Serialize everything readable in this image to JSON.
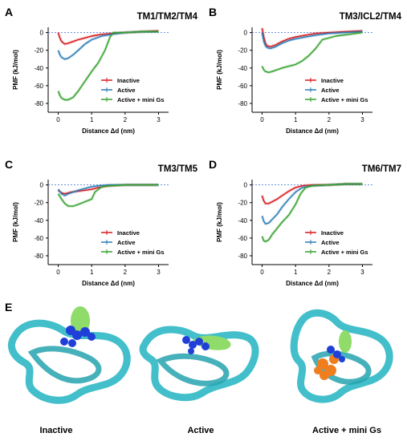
{
  "chart_data": [
    {
      "type": "line",
      "panel": "A",
      "title": "TM1/TM2/TM4",
      "xlabel": "Distance Δd (nm)",
      "ylabel": "PMF (kJ/mol)",
      "xlim": [
        -0.3,
        3.3
      ],
      "ylim": [
        -90,
        6
      ],
      "xticks": [
        0,
        1,
        2,
        3
      ],
      "yticks": [
        0,
        -20,
        -40,
        -60,
        -80
      ],
      "reference_line": 0,
      "legend": "bottom-right",
      "series": [
        {
          "name": "Inactive",
          "color": "#d7191c",
          "x": [
            0.0,
            0.05,
            0.1,
            0.2,
            0.3,
            0.45,
            0.6,
            0.8,
            1.0,
            1.3,
            1.6,
            2.0,
            2.5,
            3.0
          ],
          "y": [
            0,
            -6,
            -10,
            -13,
            -12,
            -10,
            -8,
            -6,
            -4,
            -2,
            -1,
            0,
            1,
            2
          ]
        },
        {
          "name": "Active",
          "color": "#2c7bb6",
          "x": [
            0.0,
            0.05,
            0.1,
            0.2,
            0.3,
            0.45,
            0.6,
            0.8,
            1.0,
            1.3,
            1.6,
            2.0,
            2.5,
            3.0
          ],
          "y": [
            -20,
            -25,
            -28,
            -30,
            -29,
            -25,
            -20,
            -13,
            -8,
            -4,
            -2,
            0,
            1,
            1
          ]
        },
        {
          "name": "Active + mini Gs",
          "color": "#33a02c",
          "x": [
            0.0,
            0.05,
            0.1,
            0.2,
            0.3,
            0.45,
            0.6,
            0.8,
            1.0,
            1.2,
            1.4,
            1.55,
            1.65,
            2.0,
            2.5,
            3.0
          ],
          "y": [
            -66,
            -71,
            -74,
            -76,
            -76,
            -73,
            -66,
            -55,
            -44,
            -34,
            -20,
            -5,
            0,
            0,
            1,
            1
          ]
        }
      ]
    },
    {
      "type": "line",
      "panel": "B",
      "title": "TM3/ICL2/TM4",
      "xlabel": "Distance Δd (nm)",
      "ylabel": "PMF (kJ/mol)",
      "xlim": [
        -0.3,
        3.3
      ],
      "ylim": [
        -90,
        6
      ],
      "xticks": [
        0,
        1,
        2,
        3
      ],
      "yticks": [
        0,
        -20,
        -40,
        -60,
        -80
      ],
      "reference_line": 0,
      "legend": "bottom-right",
      "series": [
        {
          "name": "Inactive",
          "color": "#d7191c",
          "x": [
            0.0,
            0.05,
            0.1,
            0.15,
            0.25,
            0.4,
            0.6,
            0.8,
            1.0,
            1.3,
            1.6,
            2.0,
            2.5,
            3.0
          ],
          "y": [
            5,
            -5,
            -12,
            -15,
            -16,
            -14,
            -10,
            -7,
            -5,
            -3,
            -1,
            0,
            1,
            2
          ]
        },
        {
          "name": "Active",
          "color": "#2c7bb6",
          "x": [
            0.0,
            0.05,
            0.1,
            0.15,
            0.25,
            0.4,
            0.6,
            0.8,
            1.0,
            1.3,
            1.6,
            2.0,
            2.5,
            3.0
          ],
          "y": [
            0,
            -10,
            -15,
            -17,
            -18,
            -16,
            -12,
            -9,
            -7,
            -5,
            -3,
            -1,
            0,
            1
          ]
        },
        {
          "name": "Active + mini Gs",
          "color": "#33a02c",
          "x": [
            0.0,
            0.05,
            0.1,
            0.2,
            0.3,
            0.45,
            0.6,
            0.8,
            1.0,
            1.2,
            1.4,
            1.6,
            1.8,
            2.2,
            2.6,
            3.0
          ],
          "y": [
            -38,
            -42,
            -44,
            -45,
            -44,
            -42,
            -40,
            -38,
            -36,
            -32,
            -26,
            -18,
            -8,
            -4,
            -2,
            0
          ]
        }
      ]
    },
    {
      "type": "line",
      "panel": "C",
      "title": "TM3/TM5",
      "xlabel": "Distance Δd (nm)",
      "ylabel": "PMF (kJ/mol)",
      "xlim": [
        -0.3,
        3.3
      ],
      "ylim": [
        -90,
        6
      ],
      "xticks": [
        0,
        1,
        2,
        3
      ],
      "yticks": [
        0,
        -20,
        -40,
        -60,
        -80
      ],
      "reference_line": 0,
      "legend": "bottom-right",
      "series": [
        {
          "name": "Inactive",
          "color": "#d7191c",
          "x": [
            0.0,
            0.1,
            0.2,
            0.3,
            0.4,
            0.6,
            0.8,
            1.0,
            1.2,
            1.5,
            2.0,
            2.5,
            3.0
          ],
          "y": [
            -6,
            -9,
            -10,
            -9,
            -8,
            -7,
            -6,
            -5,
            -3,
            -1,
            0,
            0,
            0
          ]
        },
        {
          "name": "Active",
          "color": "#2c7bb6",
          "x": [
            0.0,
            0.1,
            0.2,
            0.3,
            0.45,
            0.6,
            0.8,
            1.0,
            1.2,
            1.5,
            2.0,
            2.5,
            3.0
          ],
          "y": [
            -5,
            -10,
            -12,
            -10,
            -8,
            -6,
            -4,
            -2,
            -1,
            0,
            0,
            0,
            0
          ]
        },
        {
          "name": "Active + mini Gs",
          "color": "#33a02c",
          "x": [
            0.0,
            0.1,
            0.2,
            0.3,
            0.45,
            0.6,
            0.8,
            1.0,
            1.1,
            1.3,
            1.6,
            2.0,
            2.5,
            3.0
          ],
          "y": [
            -10,
            -16,
            -21,
            -24,
            -24,
            -22,
            -19,
            -16,
            -8,
            -2,
            -1,
            0,
            0,
            0
          ]
        }
      ]
    },
    {
      "type": "line",
      "panel": "D",
      "title": "TM6/TM7",
      "xlabel": "Distance Δd (nm)",
      "ylabel": "PMF (kJ/mol)",
      "xlim": [
        -0.3,
        3.3
      ],
      "ylim": [
        -90,
        6
      ],
      "xticks": [
        0,
        1,
        2,
        3
      ],
      "yticks": [
        0,
        -20,
        -40,
        -60,
        -80
      ],
      "reference_line": 0,
      "legend": "bottom-right",
      "series": [
        {
          "name": "Inactive",
          "color": "#d7191c",
          "x": [
            0.0,
            0.05,
            0.1,
            0.2,
            0.3,
            0.45,
            0.6,
            0.8,
            1.0,
            1.2,
            1.5,
            2.0,
            2.5,
            3.0
          ],
          "y": [
            -12,
            -18,
            -21,
            -21,
            -19,
            -16,
            -12,
            -7,
            -3,
            -1,
            0,
            0,
            1,
            1
          ]
        },
        {
          "name": "Active",
          "color": "#2c7bb6",
          "x": [
            0.0,
            0.05,
            0.1,
            0.2,
            0.3,
            0.45,
            0.6,
            0.8,
            1.0,
            1.2,
            1.5,
            2.0,
            2.5,
            3.0
          ],
          "y": [
            -35,
            -41,
            -44,
            -43,
            -39,
            -33,
            -25,
            -16,
            -8,
            -3,
            -1,
            0,
            1,
            1
          ]
        },
        {
          "name": "Active + mini Gs",
          "color": "#33a02c",
          "x": [
            0.0,
            0.05,
            0.1,
            0.2,
            0.3,
            0.45,
            0.6,
            0.8,
            1.0,
            1.15,
            1.3,
            1.5,
            2.0,
            2.5,
            3.0
          ],
          "y": [
            -58,
            -63,
            -64,
            -62,
            -56,
            -49,
            -42,
            -34,
            -22,
            -10,
            -3,
            -1,
            0,
            1,
            1
          ]
        }
      ]
    }
  ],
  "panel_e": {
    "letter": "E",
    "labels": [
      "Inactive",
      "Active",
      "Active + mini Gs"
    ],
    "colors": {
      "backbone": "#2eb8c4",
      "highlight": "#1f3fd8",
      "ligand": "#8fdc6a",
      "gs": "#f07e1e"
    }
  }
}
